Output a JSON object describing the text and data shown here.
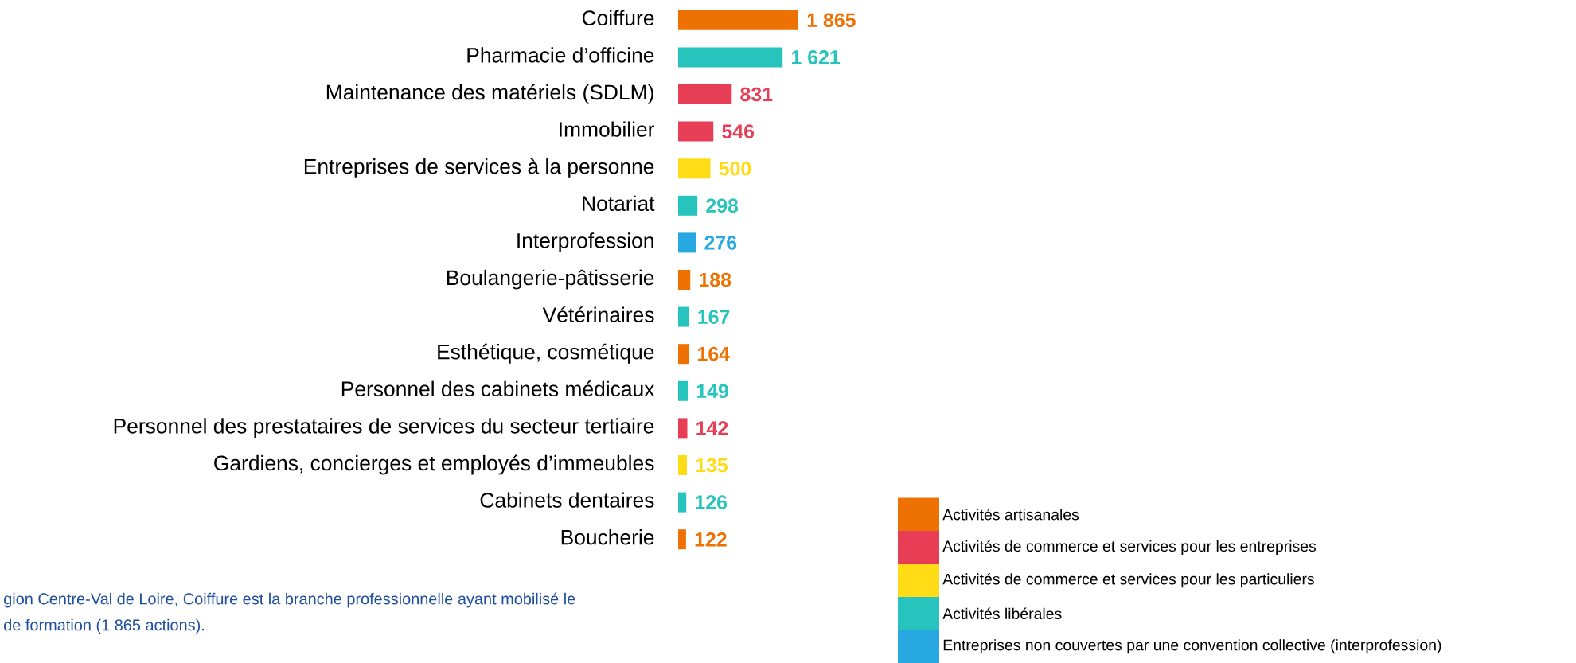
{
  "chart_data": {
    "type": "bar",
    "orientation": "horizontal",
    "categories": [
      "Coiffure",
      "Pharmacie d’officine",
      "Maintenance des matériels (SDLM)",
      "Immobilier",
      "Entreprises de services à la personne",
      "Notariat",
      "Interprofession",
      "Boulangerie-pâtisserie",
      "Vétérinaires",
      "Esthétique, cosmétique",
      "Personnel des cabinets médicaux",
      "Personnel des prestataires de services du secteur tertiaire",
      "Gardiens, concierges et employés d’immeubles",
      "Cabinets dentaires",
      "Boucherie"
    ],
    "series": [
      {
        "name": "Activités artisanales",
        "color": "#ee7203",
        "values": [
          1865,
          null,
          null,
          null,
          null,
          null,
          null,
          188,
          null,
          164,
          null,
          null,
          null,
          null,
          122
        ],
        "value_labels": [
          "1 865",
          null,
          null,
          null,
          null,
          null,
          null,
          "188",
          null,
          "164",
          null,
          null,
          null,
          null,
          "122"
        ]
      },
      {
        "name": "Activités de commerce et services pour les entreprises",
        "color": "#e83e55",
        "values": [
          null,
          null,
          831,
          546,
          null,
          null,
          null,
          null,
          null,
          null,
          null,
          142,
          null,
          null,
          null
        ],
        "value_labels": [
          null,
          null,
          "831",
          "546",
          null,
          null,
          null,
          null,
          null,
          null,
          null,
          "142",
          null,
          null,
          null
        ]
      },
      {
        "name": "Activités de commerce et services pour les particuliers",
        "color": "#ffdc15",
        "values": [
          null,
          null,
          null,
          null,
          500,
          null,
          null,
          null,
          null,
          null,
          null,
          null,
          135,
          null,
          null
        ],
        "value_labels": [
          null,
          null,
          null,
          null,
          "500",
          null,
          null,
          null,
          null,
          null,
          null,
          null,
          "135",
          null,
          null
        ]
      },
      {
        "name": "Activités libérales",
        "color": "#26c4bc",
        "values": [
          null,
          1621,
          null,
          null,
          null,
          298,
          null,
          null,
          167,
          null,
          149,
          null,
          null,
          126,
          null
        ],
        "value_labels": [
          null,
          "1 621",
          null,
          null,
          null,
          "298",
          null,
          null,
          "167",
          null,
          "149",
          null,
          null,
          "126",
          null
        ]
      },
      {
        "name": "Entreprises non couvertes par une convention collective (interprofession)",
        "color": "#28a8e0",
        "values": [
          null,
          null,
          null,
          null,
          null,
          null,
          276,
          null,
          null,
          null,
          null,
          null,
          null,
          null,
          null
        ],
        "value_labels": [
          null,
          null,
          null,
          null,
          null,
          null,
          "276",
          null,
          null,
          null,
          null,
          null,
          null,
          null,
          null
        ]
      }
    ],
    "legend": "bottom right",
    "annotations": [
      "gion Centre-Val de Loire, Coiffure est la branche professionnelle ayant mobilisé le",
      "de formation (1 865 actions)."
    ]
  }
}
